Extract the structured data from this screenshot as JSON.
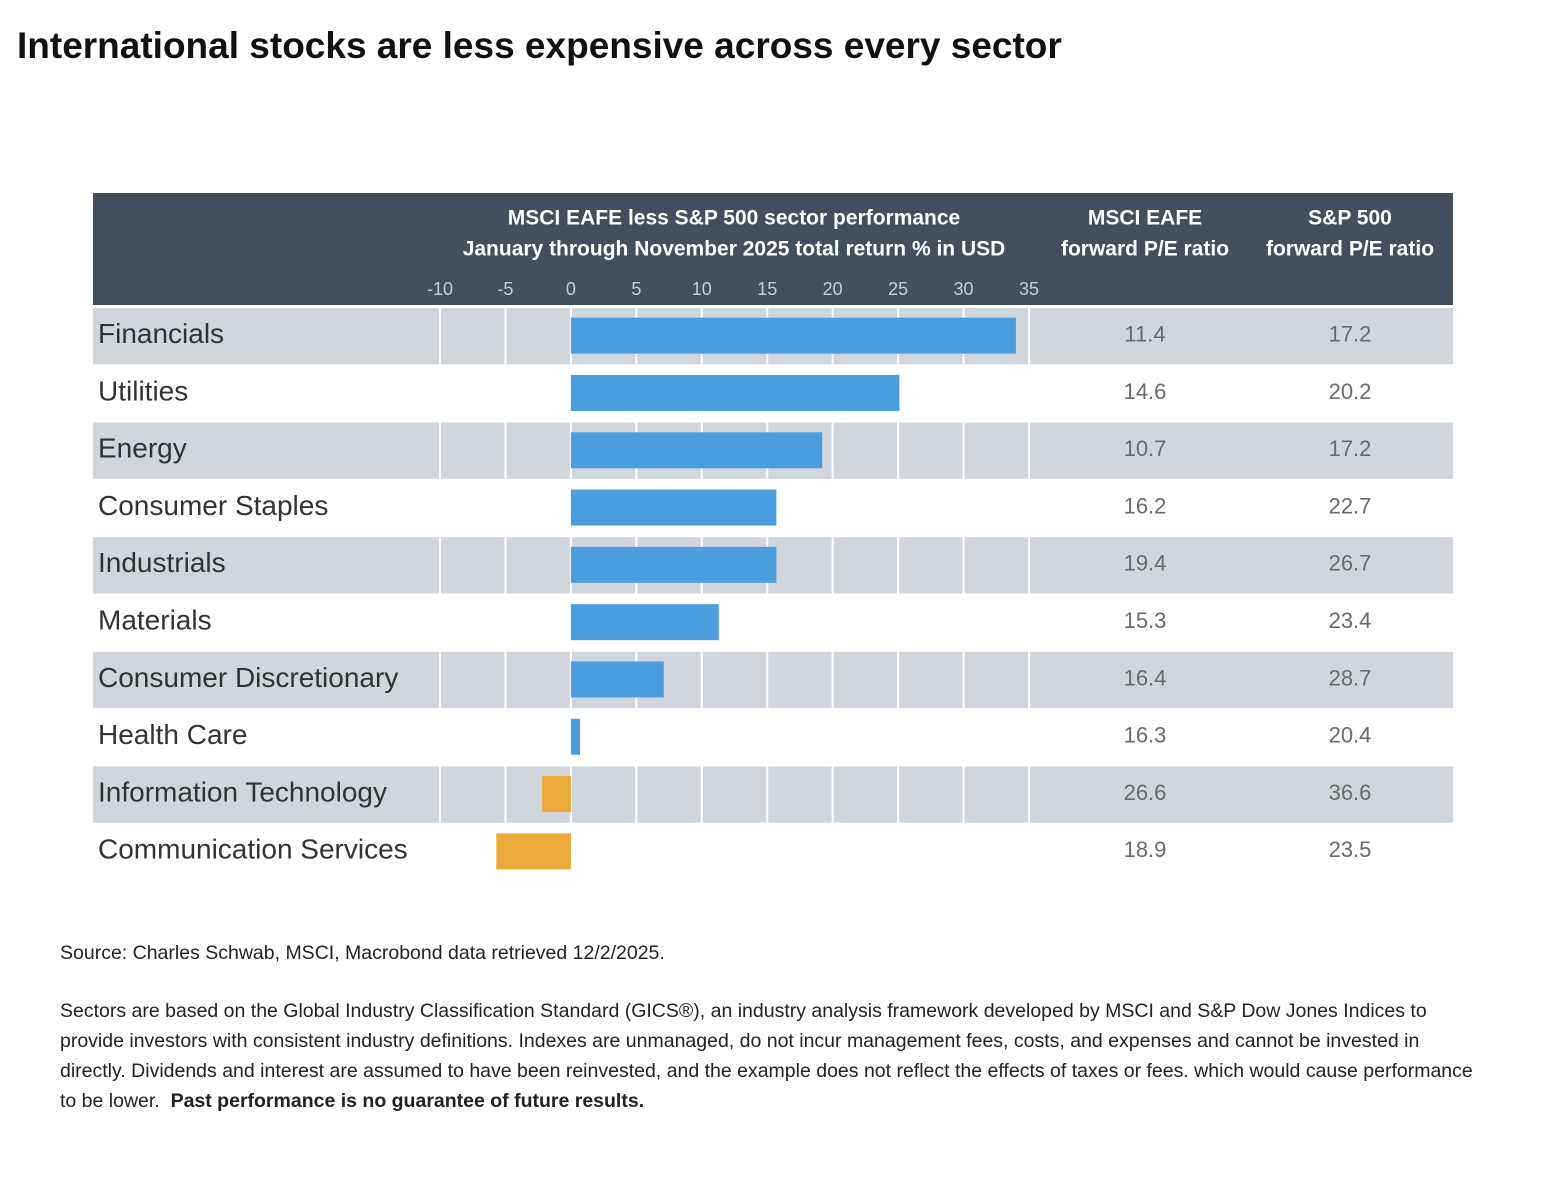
{
  "title": "International stocks are less expensive across every sector",
  "chart_data": {
    "type": "hbar",
    "title": "MSCI EAFE less S&P 500 sector performance",
    "subtitle": "January through November 2025 total return % in USD",
    "categories": [
      "Financials",
      "Utilities",
      "Energy",
      "Consumer Staples",
      "Industrials",
      "Materials",
      "Consumer Discretionary",
      "Health Care",
      "Information Technology",
      "Communication Services"
    ],
    "values": [
      34,
      25.1,
      19.2,
      15.7,
      15.7,
      11.3,
      7.1,
      0.7,
      -2.2,
      -5.7
    ],
    "color": "#4a9ee0",
    "negative_color": "#eba93b",
    "xlim": [
      -10,
      35
    ],
    "xticks": [
      -10,
      -5,
      0,
      5,
      10,
      15,
      20,
      25,
      30,
      35
    ],
    "grid": true,
    "pe_columns": [
      {
        "header_lines": [
          "MSCI EAFE",
          "forward P/E ratio"
        ],
        "values": [
          11.4,
          14.6,
          10.7,
          16.2,
          19.4,
          15.3,
          16.4,
          16.3,
          26.6,
          18.9
        ]
      },
      {
        "header_lines": [
          "S&P 500",
          "forward P/E ratio"
        ],
        "values": [
          17.2,
          20.2,
          17.2,
          22.7,
          26.7,
          23.4,
          28.7,
          20.4,
          36.6,
          23.5
        ]
      }
    ]
  },
  "footnotes": {
    "source": "Source: Charles Schwab, MSCI, Macrobond data retrieved 12/2/2025.",
    "disclaimer": "Sectors are based on the Global Industry Classification Standard (GICS®), an industry analysis framework developed by MSCI and S&P Dow Jones Indices to provide investors with consistent industry definitions. Indexes are unmanaged, do not incur management fees, costs, and expenses and cannot be invested in directly. Dividends and interest are assumed to have been reinvested, and the example does not reflect the effects of taxes or fees. which would cause performance to be lower.",
    "disclaimer_bold": "Past performance is no guarantee of future results."
  }
}
